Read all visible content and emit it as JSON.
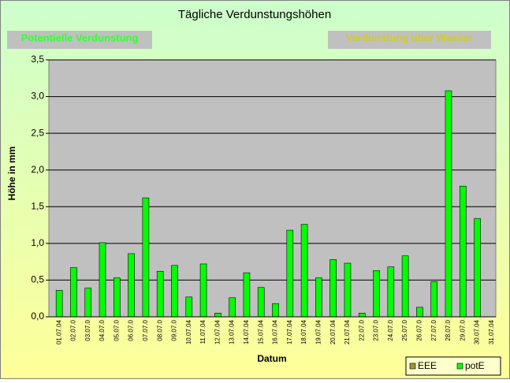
{
  "buttons": [
    "Potentielle Verdunstung",
    "Verdunstung über Wasser"
  ],
  "chart_data": {
    "type": "bar",
    "title": "Tägliche Verdunstungshöhen",
    "x_label": "Datum",
    "y_label": "Höhe in mm",
    "categories": [
      "01.07.04",
      "02.07.0",
      "03.07.0",
      "04.07.0",
      "05.07.0",
      "06.07.0",
      "07.07.0",
      "08.07.0",
      "09.07.0",
      "10.07.04",
      "11.07.04",
      "12.07.04",
      "13.07.04",
      "14.07.04",
      "15.07.04",
      "16.07.04",
      "17.07.04",
      "18.07.04",
      "19.07.04",
      "20.07.04",
      "21.07.04",
      "22.07.0",
      "23.07.0",
      "24.07.0",
      "25.07.0",
      "26.07.0",
      "27.07.0",
      "28.07.0",
      "29.07.0",
      "30.07.04",
      "31.07.04"
    ],
    "series": [
      {
        "name": "EEE",
        "color": "#999933",
        "values": [
          null,
          null,
          null,
          null,
          null,
          null,
          null,
          null,
          null,
          null,
          null,
          null,
          null,
          null,
          null,
          null,
          null,
          null,
          null,
          null,
          null,
          null,
          null,
          null,
          null,
          null,
          null,
          null,
          null,
          null,
          null
        ]
      },
      {
        "name": "potE",
        "color": "#00ff00",
        "values": [
          0.36,
          0.67,
          0.39,
          1.01,
          0.53,
          0.86,
          1.62,
          0.62,
          0.7,
          0.27,
          0.72,
          0.05,
          0.26,
          0.6,
          0.4,
          0.18,
          1.18,
          1.26,
          0.53,
          0.78,
          0.73,
          0.05,
          0.63,
          0.68,
          0.83,
          0.13,
          0.48,
          3.08,
          1.78,
          1.34,
          null
        ]
      }
    ],
    "ylim": [
      0,
      3.5
    ],
    "yticks": [
      {
        "value": 0,
        "label": "0,0"
      },
      {
        "value": 0.5,
        "label": "0,5"
      },
      {
        "value": 1,
        "label": "1,0"
      },
      {
        "value": 1.5,
        "label": "1,5"
      },
      {
        "value": 2,
        "label": "2,0"
      },
      {
        "value": 2.5,
        "label": "2,5"
      },
      {
        "value": 3,
        "label": "3,0"
      },
      {
        "value": 3.5,
        "label": "3,5"
      }
    ],
    "grid": true,
    "legend": "bottom-right"
  }
}
